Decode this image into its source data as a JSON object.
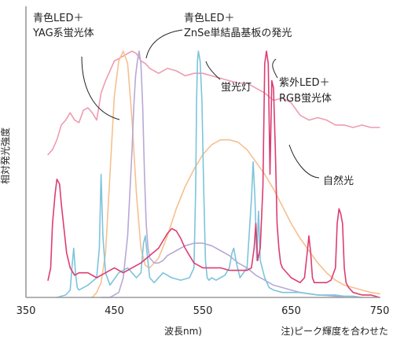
{
  "chart_data": {
    "type": "line",
    "title": "",
    "xlabel": "波長nm)",
    "ylabel": "相対発光強度",
    "xlim": [
      350,
      750
    ],
    "ylim": [
      0,
      1
    ],
    "x_ticks": [
      "350",
      "450",
      "550",
      "650",
      "750"
    ],
    "grid": false,
    "note": "注)ピーク輝度を合わせた",
    "annotations": [
      {
        "id": "yag",
        "lines": [
          "青色LED＋",
          "YAG系蛍光体"
        ]
      },
      {
        "id": "znse",
        "lines": [
          "青色LED＋",
          "ZnSe単結晶基板の発光"
        ]
      },
      {
        "id": "fluor",
        "lines": [
          "蛍光灯"
        ]
      },
      {
        "id": "uv",
        "lines": [
          "紫外LED＋",
          "RGB蛍光体"
        ]
      },
      {
        "id": "nat",
        "lines": [
          "自然光"
        ]
      }
    ],
    "series": [
      {
        "id": "nat",
        "color": "#ee9cb0",
        "x": [
          375,
          380,
          385,
          390,
          395,
          400,
          405,
          410,
          415,
          420,
          425,
          430,
          435,
          440,
          450,
          455,
          460,
          465,
          470,
          475,
          480,
          485,
          490,
          500,
          510,
          520,
          530,
          540,
          550,
          560,
          570,
          580,
          590,
          600,
          610,
          620,
          630,
          640,
          650,
          660,
          670,
          680,
          690,
          700,
          710,
          720,
          730,
          740,
          750
        ],
        "y": [
          0.58,
          0.6,
          0.64,
          0.7,
          0.72,
          0.75,
          0.72,
          0.71,
          0.76,
          0.77,
          0.75,
          0.72,
          0.83,
          0.88,
          0.96,
          0.97,
          0.98,
          0.99,
          1.0,
          0.99,
          0.96,
          0.95,
          0.93,
          0.91,
          0.93,
          0.92,
          0.9,
          0.91,
          0.91,
          0.9,
          0.89,
          0.88,
          0.87,
          0.87,
          0.85,
          0.83,
          0.8,
          0.81,
          0.79,
          0.74,
          0.72,
          0.73,
          0.72,
          0.7,
          0.7,
          0.69,
          0.7,
          0.69,
          0.69
        ]
      },
      {
        "id": "yag",
        "color": "#f6c08e",
        "x": [
          425,
          430,
          435,
          440,
          445,
          450,
          455,
          460,
          465,
          470,
          475,
          480,
          485,
          490,
          500,
          510,
          520,
          530,
          540,
          550,
          560,
          570,
          580,
          590,
          600,
          610,
          620,
          630,
          640,
          650,
          660,
          670,
          680,
          690,
          700,
          710,
          720,
          730,
          740,
          750
        ],
        "y": [
          0.0,
          0.02,
          0.06,
          0.18,
          0.5,
          0.82,
          0.96,
          1.0,
          0.95,
          0.72,
          0.42,
          0.2,
          0.13,
          0.12,
          0.16,
          0.25,
          0.36,
          0.45,
          0.52,
          0.58,
          0.62,
          0.64,
          0.64,
          0.63,
          0.6,
          0.55,
          0.5,
          0.44,
          0.37,
          0.3,
          0.24,
          0.19,
          0.14,
          0.1,
          0.07,
          0.05,
          0.04,
          0.03,
          0.02,
          0.015
        ]
      },
      {
        "id": "znse",
        "color": "#b8a8d6",
        "x": [
          435,
          445,
          455,
          460,
          465,
          470,
          472,
          474,
          476,
          478,
          480,
          482,
          484,
          486,
          488,
          490,
          495,
          500,
          505,
          510,
          520,
          530,
          540,
          550,
          560,
          570,
          580,
          590,
          600,
          610,
          620,
          630,
          640,
          650,
          660,
          670,
          680,
          690,
          700,
          710
        ],
        "y": [
          0.0,
          0.0,
          0.02,
          0.08,
          0.25,
          0.6,
          0.78,
          0.9,
          0.96,
          1.0,
          0.95,
          0.78,
          0.5,
          0.3,
          0.2,
          0.16,
          0.14,
          0.14,
          0.15,
          0.17,
          0.19,
          0.21,
          0.22,
          0.22,
          0.21,
          0.19,
          0.17,
          0.14,
          0.12,
          0.09,
          0.07,
          0.05,
          0.04,
          0.03,
          0.02,
          0.015,
          0.01,
          0.008,
          0.005,
          0.0
        ]
      },
      {
        "id": "fluor",
        "color": "#7dc4dc",
        "x": [
          385,
          395,
          400,
          402,
          404,
          406,
          408,
          410,
          420,
          430,
          433,
          435,
          437,
          440,
          445,
          455,
          465,
          475,
          480,
          483,
          485,
          487,
          490,
          495,
          505,
          515,
          525,
          535,
          540,
          542,
          543,
          544,
          545,
          547,
          549,
          551,
          553,
          555,
          557,
          560,
          565,
          570,
          575,
          580,
          583,
          585,
          588,
          592,
          600,
          605,
          607,
          609,
          611,
          613,
          615,
          620,
          625,
          630,
          640,
          650,
          660,
          670,
          680,
          690,
          700,
          710,
          720,
          730
        ],
        "y": [
          0.0,
          0.01,
          0.03,
          0.12,
          0.2,
          0.1,
          0.04,
          0.03,
          0.05,
          0.08,
          0.2,
          0.5,
          0.25,
          0.1,
          0.05,
          0.1,
          0.12,
          0.08,
          0.1,
          0.22,
          0.25,
          0.18,
          0.08,
          0.06,
          0.1,
          0.08,
          0.07,
          0.08,
          0.12,
          0.45,
          0.8,
          0.96,
          1.0,
          0.96,
          0.8,
          0.45,
          0.15,
          0.08,
          0.07,
          0.08,
          0.07,
          0.08,
          0.09,
          0.12,
          0.18,
          0.2,
          0.14,
          0.08,
          0.12,
          0.4,
          0.55,
          0.4,
          0.15,
          0.35,
          0.15,
          0.08,
          0.04,
          0.03,
          0.02,
          0.02,
          0.02,
          0.015,
          0.01,
          0.01,
          0.01,
          0.005,
          0.005,
          0.0
        ]
      },
      {
        "id": "uv",
        "color": "#dd3d71",
        "x": [
          375,
          378,
          380,
          383,
          385,
          388,
          390,
          393,
          396,
          400,
          405,
          410,
          420,
          430,
          440,
          450,
          460,
          470,
          480,
          490,
          500,
          510,
          515,
          520,
          525,
          530,
          535,
          540,
          550,
          560,
          570,
          580,
          590,
          600,
          605,
          608,
          610,
          612,
          615,
          618,
          620,
          622,
          624,
          626,
          628,
          630,
          632,
          634,
          636,
          638,
          640,
          650,
          660,
          665,
          668,
          670,
          672,
          674,
          676,
          680,
          685,
          690,
          695,
          700,
          702,
          704,
          706,
          708,
          710,
          712,
          715,
          720,
          730,
          740,
          750
        ],
        "y": [
          0.07,
          0.12,
          0.3,
          0.42,
          0.48,
          0.46,
          0.38,
          0.28,
          0.18,
          0.12,
          0.09,
          0.1,
          0.1,
          0.08,
          0.1,
          0.12,
          0.1,
          0.12,
          0.14,
          0.17,
          0.2,
          0.26,
          0.28,
          0.27,
          0.24,
          0.2,
          0.17,
          0.14,
          0.12,
          0.12,
          0.12,
          0.11,
          0.11,
          0.11,
          0.12,
          0.2,
          0.3,
          0.15,
          0.2,
          0.45,
          0.95,
          1.0,
          0.95,
          0.5,
          0.88,
          0.85,
          0.6,
          0.3,
          0.2,
          0.14,
          0.12,
          0.08,
          0.06,
          0.08,
          0.18,
          0.25,
          0.18,
          0.08,
          0.06,
          0.06,
          0.06,
          0.06,
          0.07,
          0.12,
          0.3,
          0.36,
          0.34,
          0.3,
          0.12,
          0.06,
          0.04,
          0.02,
          0.01,
          0.01,
          0.0
        ]
      }
    ]
  }
}
